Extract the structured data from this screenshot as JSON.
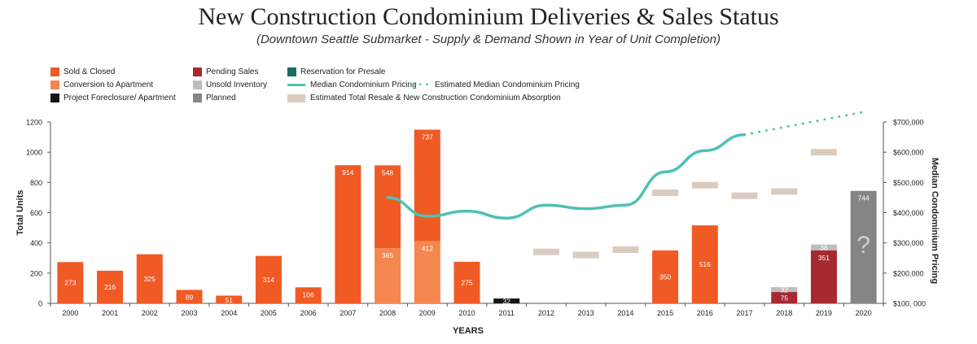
{
  "chart_data": {
    "type": "bar",
    "title": "New Construction Condominium Deliveries & Sales Status",
    "subtitle": "(Downtown Seattle Submarket - Supply & Demand Shown in Year of Unit Completion)",
    "xlabel": "YEARS",
    "ylabel": "Total Units",
    "ylabel_right": "Median Condominium Pricing",
    "ylim": [
      0,
      1200
    ],
    "ylim_right": [
      100000,
      700000
    ],
    "yticks": [
      "0",
      "200",
      "400",
      "600",
      "800",
      "1000",
      "1200"
    ],
    "yticks_right": [
      "$100, 000",
      "$200,000",
      "$300,000",
      "$400,000",
      "$500,000",
      "$600,000",
      "$700,000"
    ],
    "yticks_right_values": [
      100000,
      200000,
      300000,
      400000,
      500000,
      600000,
      700000
    ],
    "categories": [
      "2000",
      "2001",
      "2002",
      "2003",
      "2004",
      "2005",
      "2006",
      "2007",
      "2008",
      "2009",
      "2010",
      "2011",
      "2012",
      "2013",
      "2014",
      "2015",
      "2016",
      "2017",
      "2018",
      "2019",
      "2020"
    ],
    "colors": {
      "sold": "#F05A24",
      "conversion": "#F4874F",
      "foreclosure": "#141414",
      "pending": "#A62A30",
      "unsold": "#BDBDBD",
      "planned": "#858585",
      "reservation": "#1E6B5C",
      "median": "#4EC1B5",
      "absorption": "#D9CCBF"
    },
    "legend": [
      {
        "key": "sold",
        "label": "Sold & Closed",
        "kind": "box"
      },
      {
        "key": "conversion",
        "label": "Conversion to Apartment",
        "kind": "box"
      },
      {
        "key": "foreclosure",
        "label": "Project Foreclosure/ Apartment",
        "kind": "box"
      },
      {
        "key": "pending",
        "label": "Pending Sales",
        "kind": "box"
      },
      {
        "key": "unsold",
        "label": "Unsold Inventory",
        "kind": "box"
      },
      {
        "key": "planned",
        "label": "Planned",
        "kind": "box"
      },
      {
        "key": "reservation",
        "label": "Reservation for Presale",
        "kind": "box"
      },
      {
        "key": "median",
        "label": "Median Condominium Pricing",
        "kind": "line"
      },
      {
        "key": "median",
        "label": "Estimated Median Condominium Pricing",
        "kind": "dots"
      },
      {
        "key": "absorption",
        "label": "Estimated Total Resale & New Construction Condominium Absorption",
        "kind": "wide"
      }
    ],
    "stacks": [
      [
        {
          "key": "sold",
          "value": 273
        }
      ],
      [
        {
          "key": "sold",
          "value": 216
        }
      ],
      [
        {
          "key": "sold",
          "value": 325
        }
      ],
      [
        {
          "key": "sold",
          "value": 89
        }
      ],
      [
        {
          "key": "sold",
          "value": 51
        }
      ],
      [
        {
          "key": "sold",
          "value": 314
        }
      ],
      [
        {
          "key": "sold",
          "value": 106
        }
      ],
      [
        {
          "key": "sold",
          "value": 914
        }
      ],
      [
        {
          "key": "conversion",
          "value": 365
        },
        {
          "key": "sold",
          "value": 548
        }
      ],
      [
        {
          "key": "conversion",
          "value": 412
        },
        {
          "key": "sold",
          "value": 737
        }
      ],
      [
        {
          "key": "sold",
          "value": 275
        }
      ],
      [
        {
          "key": "foreclosure",
          "value": 32
        }
      ],
      [],
      [],
      [],
      [
        {
          "key": "sold",
          "value": 350
        }
      ],
      [
        {
          "key": "sold",
          "value": 516
        }
      ],
      [],
      [
        {
          "key": "pending",
          "value": 75
        },
        {
          "key": "unsold",
          "value": 32
        }
      ],
      [
        {
          "key": "pending",
          "value": 351
        },
        {
          "key": "unsold",
          "value": 38
        }
      ],
      [
        {
          "key": "planned",
          "value": 744
        }
      ]
    ],
    "planned_mark": "?",
    "median_pricing": {
      "years": [
        "2008",
        "2009",
        "2010",
        "2011",
        "2012",
        "2013",
        "2014",
        "2015",
        "2016",
        "2017"
      ],
      "values": [
        450000,
        388000,
        405000,
        382000,
        425000,
        413000,
        425000,
        535000,
        605000,
        658000
      ]
    },
    "estimated_median_pricing": {
      "years": [
        "2017",
        "2018",
        "2019",
        "2020"
      ],
      "values": [
        658000,
        683000,
        708000,
        733000
      ]
    },
    "absorption": {
      "years": [
        "2012",
        "2013",
        "2014",
        "2015",
        "2016",
        "2017",
        "2018",
        "2019"
      ],
      "values": [
        340,
        320,
        355,
        732,
        782,
        712,
        740,
        1000
      ]
    }
  }
}
